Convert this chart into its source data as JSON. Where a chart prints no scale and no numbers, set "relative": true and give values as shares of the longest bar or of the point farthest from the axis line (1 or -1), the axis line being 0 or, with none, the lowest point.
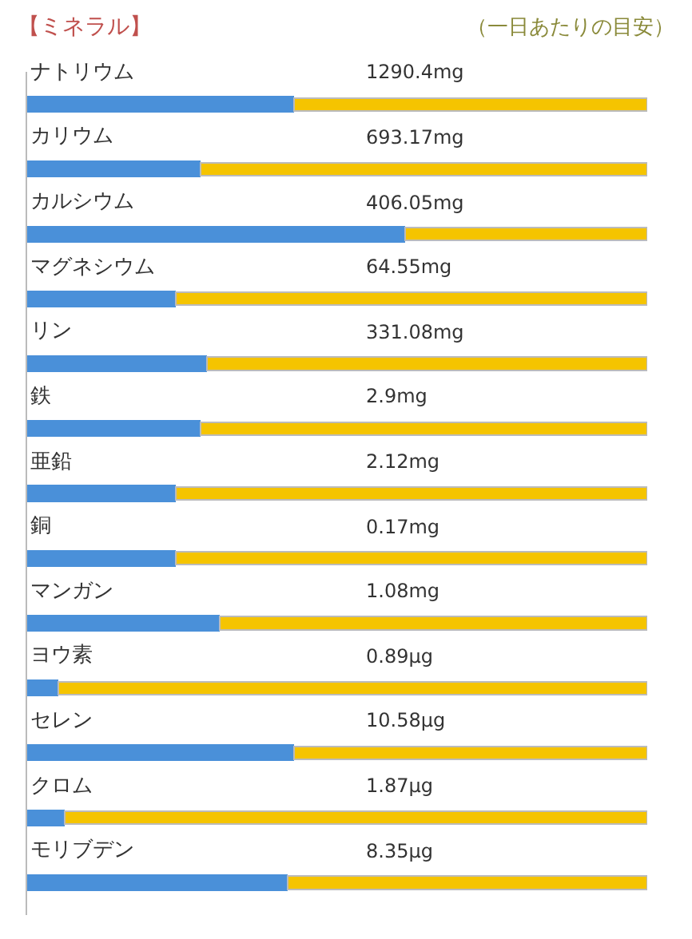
{
  "chart_data": {
    "type": "bar",
    "orientation": "horizontal",
    "relative": true,
    "stacked": true,
    "title": "【ミネラル】",
    "subtitle": "（一日あたりの目安）",
    "categories": [
      "ナトリウム",
      "カリウム",
      "カルシウム",
      "マグネシウム",
      "リン",
      "鉄",
      "亜鉛",
      "銅",
      "マンガン",
      "ヨウ素",
      "セレン",
      "クロム",
      "モリブデン"
    ],
    "series": [
      {
        "color": "#4a90d9",
        "values": [
          0.43,
          0.28,
          0.61,
          0.24,
          0.29,
          0.28,
          0.24,
          0.24,
          0.31,
          0.05,
          0.43,
          0.06,
          0.42
        ]
      },
      {
        "color": "#f5c400",
        "values": [
          0.57,
          0.72,
          0.39,
          0.76,
          0.71,
          0.72,
          0.76,
          0.76,
          0.69,
          0.95,
          0.57,
          0.94,
          0.58
        ]
      }
    ],
    "annotations": [
      "1290.4mg",
      "693.17mg",
      "406.05mg",
      "64.55mg",
      "331.08mg",
      "2.9mg",
      "2.12mg",
      "0.17mg",
      "1.08mg",
      "0.89μg",
      "10.58μg",
      "1.87μg",
      "8.35μg"
    ]
  }
}
